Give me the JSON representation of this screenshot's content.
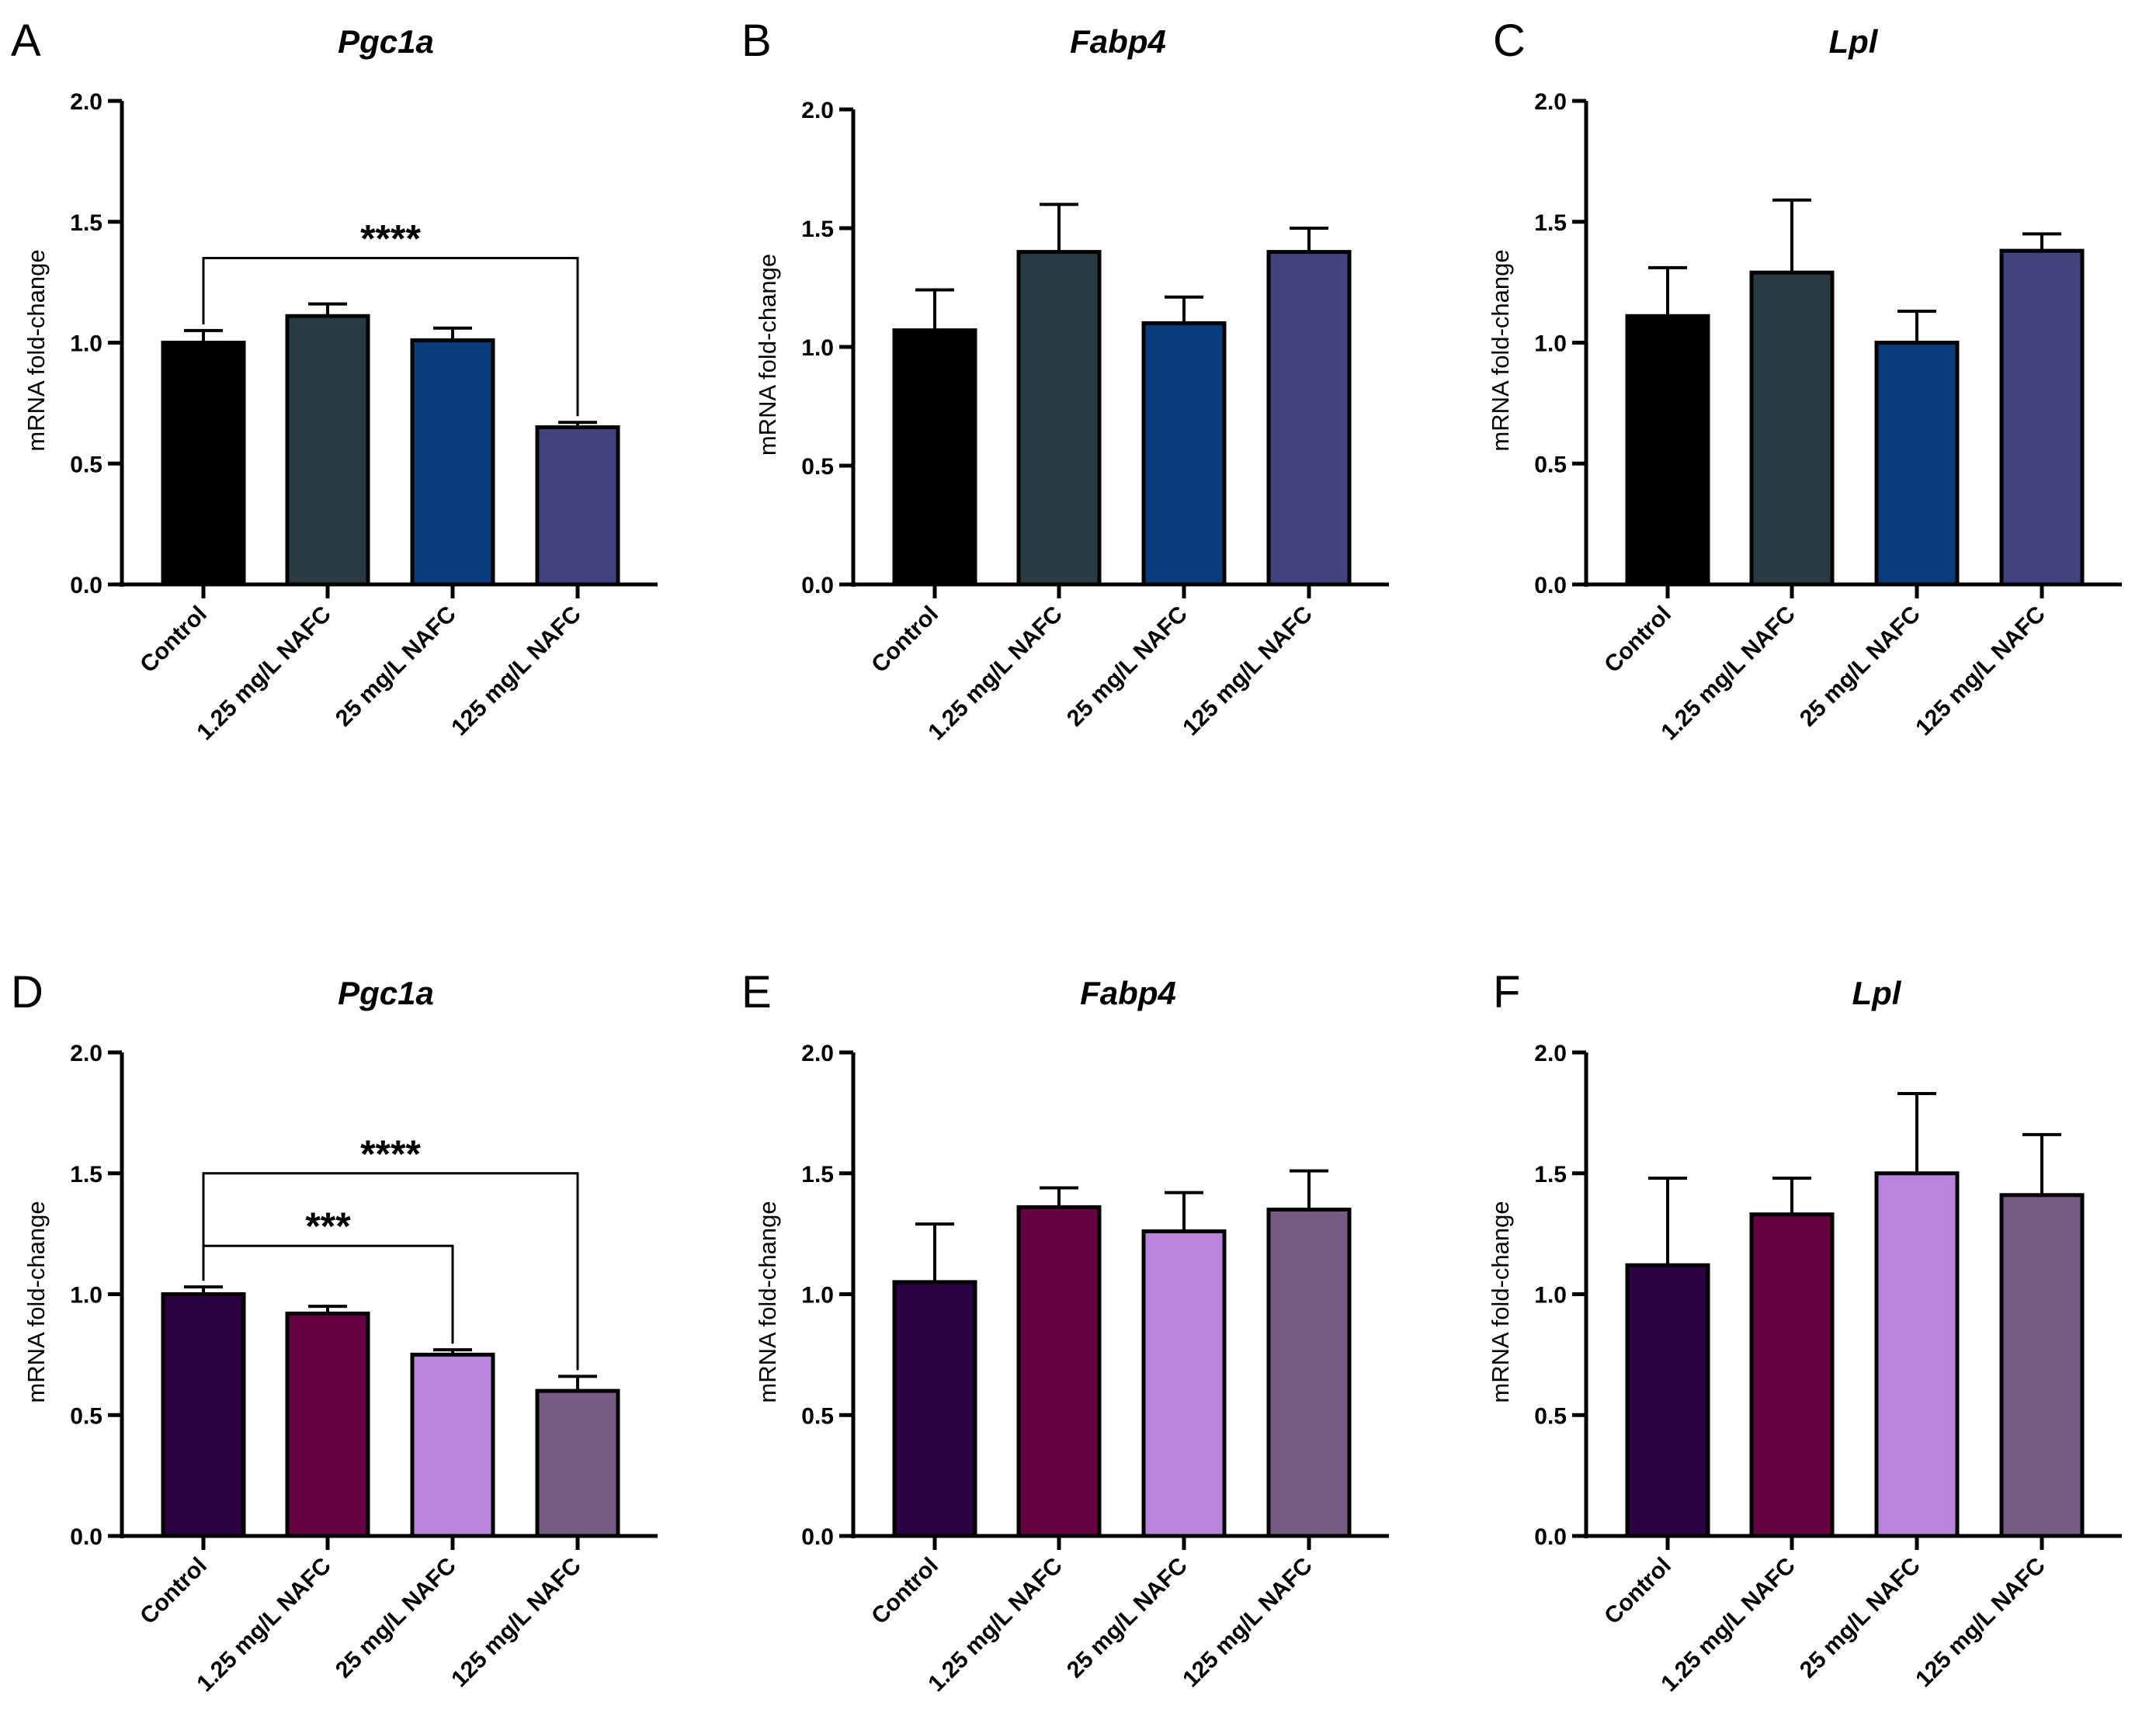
{
  "figure": {
    "categories": [
      "Control",
      "1.25 mg/L NAFC",
      "25 mg/L NAFC",
      "125 mg/L NAFC"
    ]
  },
  "chart_data": [
    {
      "panel": "A",
      "type": "bar",
      "title": "Pgc1a",
      "ylabel": "mRNA fold-change",
      "ylim": [
        0,
        2.0
      ],
      "yticks": [
        "0.0",
        "0.5",
        "1.0",
        "1.5",
        "2.0"
      ],
      "categories": [
        "Control",
        "1.25 mg/L NAFC",
        "25 mg/L NAFC",
        "125 mg/L NAFC"
      ],
      "values": [
        1.0,
        1.11,
        1.01,
        0.65
      ],
      "errors": [
        0.05,
        0.05,
        0.05,
        0.02
      ],
      "colors": [
        "#000000",
        "#283a42",
        "#0a3c7a",
        "#42437e"
      ],
      "significance": [
        {
          "from": 0,
          "to": 3,
          "label": "****",
          "level": 1.35
        }
      ]
    },
    {
      "panel": "B",
      "type": "bar",
      "title": "Fabp4",
      "ylabel": "mRNA fold-change",
      "ylim": [
        0,
        2.0
      ],
      "yticks": [
        "0.0",
        "0.5",
        "1.0",
        "1.5",
        "2.0"
      ],
      "categories": [
        "Control",
        "1.25 mg/L NAFC",
        "25 mg/L NAFC",
        "125 mg/L NAFC"
      ],
      "values": [
        1.07,
        1.4,
        1.1,
        1.4
      ],
      "errors": [
        0.17,
        0.2,
        0.11,
        0.1
      ],
      "colors": [
        "#000000",
        "#283a42",
        "#0a3c7a",
        "#42437e"
      ],
      "significance": []
    },
    {
      "panel": "C",
      "type": "bar",
      "title": "Lpl",
      "ylabel": "mRNA fold-change",
      "ylim": [
        0,
        2.0
      ],
      "yticks": [
        "0.0",
        "0.5",
        "1.0",
        "1.5",
        "2.0"
      ],
      "categories": [
        "Control",
        "1.25 mg/L NAFC",
        "25 mg/L NAFC",
        "125 mg/L NAFC"
      ],
      "values": [
        1.11,
        1.29,
        1.0,
        1.38
      ],
      "errors": [
        0.2,
        0.3,
        0.13,
        0.07
      ],
      "colors": [
        "#000000",
        "#283a42",
        "#0a3c7a",
        "#42437e"
      ],
      "significance": []
    },
    {
      "panel": "D",
      "type": "bar",
      "title": "Pgc1a",
      "ylabel": "mRNA fold-change",
      "ylim": [
        0,
        2.0
      ],
      "yticks": [
        "0.0",
        "0.5",
        "1.0",
        "1.5",
        "2.0"
      ],
      "categories": [
        "Control",
        "1.25 mg/L NAFC",
        "25 mg/L NAFC",
        "125 mg/L NAFC"
      ],
      "values": [
        1.0,
        0.92,
        0.75,
        0.6
      ],
      "errors": [
        0.03,
        0.03,
        0.02,
        0.06
      ],
      "colors": [
        "#2b0140",
        "#660042",
        "#b985db",
        "#775b84"
      ],
      "significance": [
        {
          "from": 0,
          "to": 3,
          "label": "****",
          "level": 1.5
        },
        {
          "from": 0,
          "to": 2,
          "label": "***",
          "level": 1.2
        }
      ]
    },
    {
      "panel": "E",
      "type": "bar",
      "title": "Fabp4",
      "ylabel": "mRNA fold-change",
      "ylim": [
        0,
        2.0
      ],
      "yticks": [
        "0.0",
        "0.5",
        "1.0",
        "1.5",
        "2.0"
      ],
      "categories": [
        "Control",
        "1.25 mg/L NAFC",
        "25 mg/L NAFC",
        "125 mg/L NAFC"
      ],
      "values": [
        1.05,
        1.36,
        1.26,
        1.35
      ],
      "errors": [
        0.24,
        0.08,
        0.16,
        0.16
      ],
      "colors": [
        "#2b0140",
        "#660042",
        "#b985db",
        "#775b84"
      ],
      "significance": []
    },
    {
      "panel": "F",
      "type": "bar",
      "title": "Lpl",
      "ylabel": "mRNA fold-change",
      "ylim": [
        0,
        2.0
      ],
      "yticks": [
        "0.0",
        "0.5",
        "1.0",
        "1.5",
        "2.0"
      ],
      "categories": [
        "Control",
        "1.25 mg/L NAFC",
        "25 mg/L NAFC",
        "125 mg/L NAFC"
      ],
      "values": [
        1.12,
        1.33,
        1.5,
        1.41
      ],
      "errors": [
        0.36,
        0.15,
        0.33,
        0.25
      ],
      "colors": [
        "#2b0140",
        "#660042",
        "#b985db",
        "#775b84"
      ],
      "significance": []
    }
  ]
}
